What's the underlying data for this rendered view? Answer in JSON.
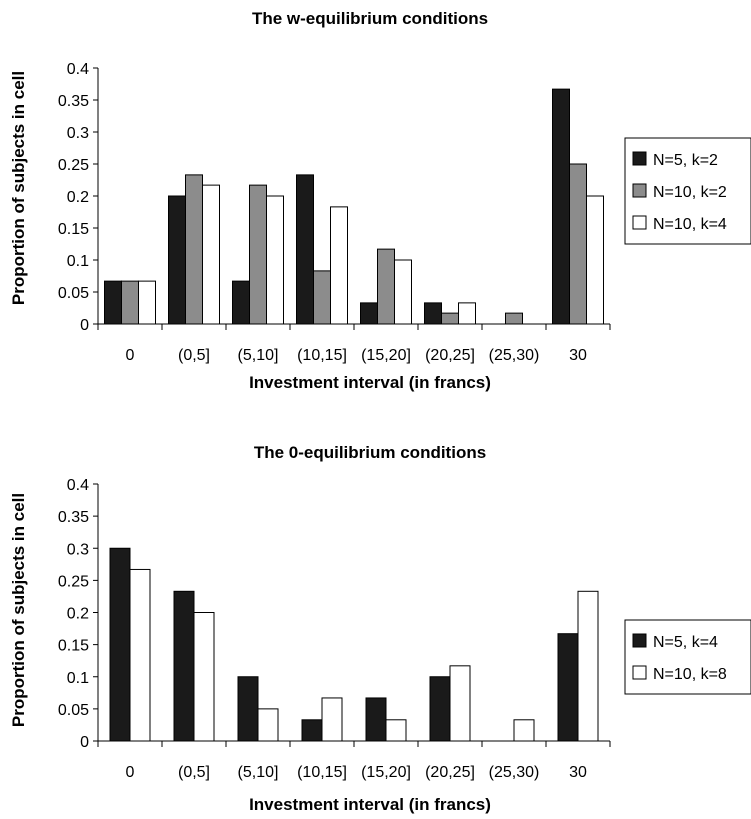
{
  "chart_data": [
    {
      "type": "bar",
      "title": "The w-equilibrium conditions",
      "xlabel": "Investment interval (in francs)",
      "ylabel": "Proportion of subjects in cell",
      "ylim": [
        0,
        0.4
      ],
      "yticks": [
        "0",
        "0.05",
        "0.1",
        "0.15",
        "0.2",
        "0.25",
        "0.3",
        "0.35",
        "0.4"
      ],
      "categories": [
        "0",
        "(0,5]",
        "(5,10]",
        "(10,15]",
        "(15,20]",
        "(20,25]",
        "(25,30)",
        "30"
      ],
      "series": [
        {
          "name": "N=5, k=2",
          "color": "#1a1a1a",
          "values": [
            0.067,
            0.2,
            0.067,
            0.233,
            0.033,
            0.033,
            0,
            0.367
          ]
        },
        {
          "name": "N=10, k=2",
          "color": "#8c8c8c",
          "values": [
            0.067,
            0.233,
            0.217,
            0.083,
            0.117,
            0.017,
            0.017,
            0.25
          ]
        },
        {
          "name": "N=10, k=4",
          "color": "#ffffff",
          "values": [
            0.067,
            0.217,
            0.2,
            0.183,
            0.1,
            0.033,
            0,
            0.2
          ]
        }
      ],
      "legend_position": "right",
      "grid": false
    },
    {
      "type": "bar",
      "title": "The 0-equilibrium conditions",
      "xlabel": "Investment interval (in francs)",
      "ylabel": "Proportion of subjects in cell",
      "ylim": [
        0,
        0.4
      ],
      "yticks": [
        "0",
        "0.05",
        "0.1",
        "0.15",
        "0.2",
        "0.25",
        "0.3",
        "0.35",
        "0.4"
      ],
      "categories": [
        "0",
        "(0,5]",
        "(5,10]",
        "(10,15]",
        "(15,20]",
        "(20,25]",
        "(25,30)",
        "30"
      ],
      "series": [
        {
          "name": "N=5, k=4",
          "color": "#1a1a1a",
          "values": [
            0.3,
            0.233,
            0.1,
            0.033,
            0.067,
            0.1,
            0,
            0.167
          ]
        },
        {
          "name": "N=10, k=8",
          "color": "#ffffff",
          "values": [
            0.267,
            0.2,
            0.05,
            0.067,
            0.033,
            0.117,
            0.033,
            0.233
          ]
        }
      ],
      "legend_position": "right",
      "grid": false
    }
  ]
}
